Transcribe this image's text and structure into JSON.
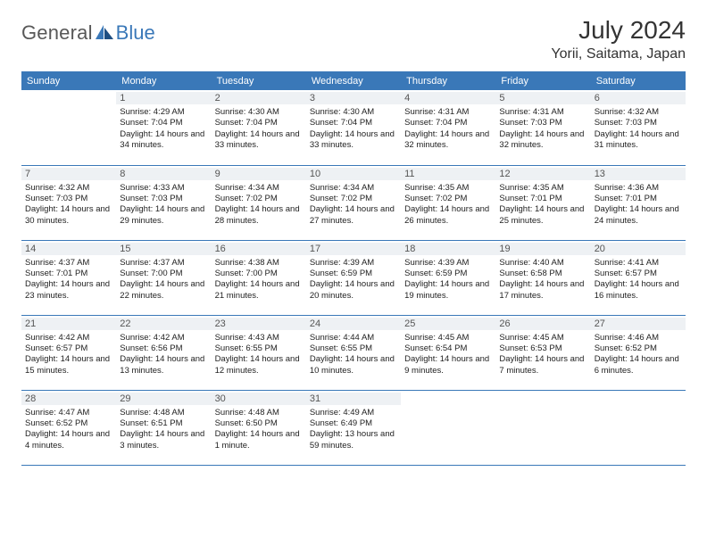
{
  "logo": {
    "text_general": "General",
    "text_blue": "Blue"
  },
  "header": {
    "month_title": "July 2024",
    "location": "Yorii, Saitama, Japan"
  },
  "colors": {
    "brand_blue": "#3a78b8",
    "day_bg": "#eef1f4",
    "text_gray": "#585858",
    "page_bg": "#ffffff"
  },
  "day_names": [
    "Sunday",
    "Monday",
    "Tuesday",
    "Wednesday",
    "Thursday",
    "Friday",
    "Saturday"
  ],
  "weeks": [
    [
      null,
      {
        "n": "1",
        "sr": "Sunrise: 4:29 AM",
        "ss": "Sunset: 7:04 PM",
        "dl": "Daylight: 14 hours and 34 minutes."
      },
      {
        "n": "2",
        "sr": "Sunrise: 4:30 AM",
        "ss": "Sunset: 7:04 PM",
        "dl": "Daylight: 14 hours and 33 minutes."
      },
      {
        "n": "3",
        "sr": "Sunrise: 4:30 AM",
        "ss": "Sunset: 7:04 PM",
        "dl": "Daylight: 14 hours and 33 minutes."
      },
      {
        "n": "4",
        "sr": "Sunrise: 4:31 AM",
        "ss": "Sunset: 7:04 PM",
        "dl": "Daylight: 14 hours and 32 minutes."
      },
      {
        "n": "5",
        "sr": "Sunrise: 4:31 AM",
        "ss": "Sunset: 7:03 PM",
        "dl": "Daylight: 14 hours and 32 minutes."
      },
      {
        "n": "6",
        "sr": "Sunrise: 4:32 AM",
        "ss": "Sunset: 7:03 PM",
        "dl": "Daylight: 14 hours and 31 minutes."
      }
    ],
    [
      {
        "n": "7",
        "sr": "Sunrise: 4:32 AM",
        "ss": "Sunset: 7:03 PM",
        "dl": "Daylight: 14 hours and 30 minutes."
      },
      {
        "n": "8",
        "sr": "Sunrise: 4:33 AM",
        "ss": "Sunset: 7:03 PM",
        "dl": "Daylight: 14 hours and 29 minutes."
      },
      {
        "n": "9",
        "sr": "Sunrise: 4:34 AM",
        "ss": "Sunset: 7:02 PM",
        "dl": "Daylight: 14 hours and 28 minutes."
      },
      {
        "n": "10",
        "sr": "Sunrise: 4:34 AM",
        "ss": "Sunset: 7:02 PM",
        "dl": "Daylight: 14 hours and 27 minutes."
      },
      {
        "n": "11",
        "sr": "Sunrise: 4:35 AM",
        "ss": "Sunset: 7:02 PM",
        "dl": "Daylight: 14 hours and 26 minutes."
      },
      {
        "n": "12",
        "sr": "Sunrise: 4:35 AM",
        "ss": "Sunset: 7:01 PM",
        "dl": "Daylight: 14 hours and 25 minutes."
      },
      {
        "n": "13",
        "sr": "Sunrise: 4:36 AM",
        "ss": "Sunset: 7:01 PM",
        "dl": "Daylight: 14 hours and 24 minutes."
      }
    ],
    [
      {
        "n": "14",
        "sr": "Sunrise: 4:37 AM",
        "ss": "Sunset: 7:01 PM",
        "dl": "Daylight: 14 hours and 23 minutes."
      },
      {
        "n": "15",
        "sr": "Sunrise: 4:37 AM",
        "ss": "Sunset: 7:00 PM",
        "dl": "Daylight: 14 hours and 22 minutes."
      },
      {
        "n": "16",
        "sr": "Sunrise: 4:38 AM",
        "ss": "Sunset: 7:00 PM",
        "dl": "Daylight: 14 hours and 21 minutes."
      },
      {
        "n": "17",
        "sr": "Sunrise: 4:39 AM",
        "ss": "Sunset: 6:59 PM",
        "dl": "Daylight: 14 hours and 20 minutes."
      },
      {
        "n": "18",
        "sr": "Sunrise: 4:39 AM",
        "ss": "Sunset: 6:59 PM",
        "dl": "Daylight: 14 hours and 19 minutes."
      },
      {
        "n": "19",
        "sr": "Sunrise: 4:40 AM",
        "ss": "Sunset: 6:58 PM",
        "dl": "Daylight: 14 hours and 17 minutes."
      },
      {
        "n": "20",
        "sr": "Sunrise: 4:41 AM",
        "ss": "Sunset: 6:57 PM",
        "dl": "Daylight: 14 hours and 16 minutes."
      }
    ],
    [
      {
        "n": "21",
        "sr": "Sunrise: 4:42 AM",
        "ss": "Sunset: 6:57 PM",
        "dl": "Daylight: 14 hours and 15 minutes."
      },
      {
        "n": "22",
        "sr": "Sunrise: 4:42 AM",
        "ss": "Sunset: 6:56 PM",
        "dl": "Daylight: 14 hours and 13 minutes."
      },
      {
        "n": "23",
        "sr": "Sunrise: 4:43 AM",
        "ss": "Sunset: 6:55 PM",
        "dl": "Daylight: 14 hours and 12 minutes."
      },
      {
        "n": "24",
        "sr": "Sunrise: 4:44 AM",
        "ss": "Sunset: 6:55 PM",
        "dl": "Daylight: 14 hours and 10 minutes."
      },
      {
        "n": "25",
        "sr": "Sunrise: 4:45 AM",
        "ss": "Sunset: 6:54 PM",
        "dl": "Daylight: 14 hours and 9 minutes."
      },
      {
        "n": "26",
        "sr": "Sunrise: 4:45 AM",
        "ss": "Sunset: 6:53 PM",
        "dl": "Daylight: 14 hours and 7 minutes."
      },
      {
        "n": "27",
        "sr": "Sunrise: 4:46 AM",
        "ss": "Sunset: 6:52 PM",
        "dl": "Daylight: 14 hours and 6 minutes."
      }
    ],
    [
      {
        "n": "28",
        "sr": "Sunrise: 4:47 AM",
        "ss": "Sunset: 6:52 PM",
        "dl": "Daylight: 14 hours and 4 minutes."
      },
      {
        "n": "29",
        "sr": "Sunrise: 4:48 AM",
        "ss": "Sunset: 6:51 PM",
        "dl": "Daylight: 14 hours and 3 minutes."
      },
      {
        "n": "30",
        "sr": "Sunrise: 4:48 AM",
        "ss": "Sunset: 6:50 PM",
        "dl": "Daylight: 14 hours and 1 minute."
      },
      {
        "n": "31",
        "sr": "Sunrise: 4:49 AM",
        "ss": "Sunset: 6:49 PM",
        "dl": "Daylight: 13 hours and 59 minutes."
      },
      null,
      null,
      null
    ]
  ]
}
